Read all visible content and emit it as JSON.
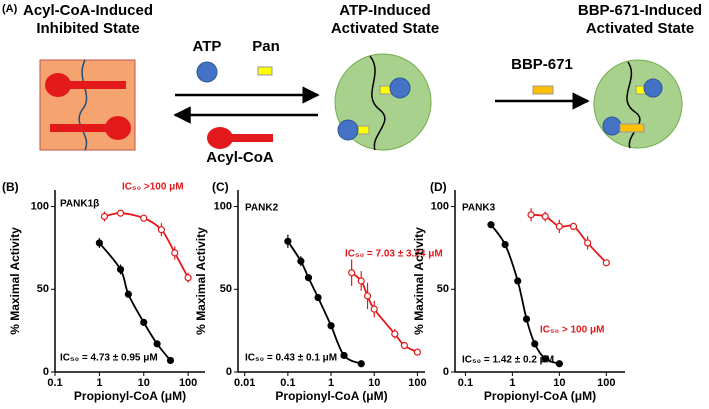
{
  "diagram": {
    "panel_label": "(A)",
    "inhibited_state": [
      "Acyl-CoA-Induced",
      "Inhibited State"
    ],
    "atp": "ATP",
    "pan": "Pan",
    "acyl_coa": "Acyl-CoA",
    "atp_state": [
      "ATP-Induced",
      "Activated State"
    ],
    "compound": "BBP-671",
    "bbp_state": [
      "BBP-671-Induced",
      "Activated State"
    ]
  },
  "chart_data": [
    {
      "type": "scatter",
      "panel_label": "(B)",
      "xlabel": "Propionyl-CoA (μM)",
      "ylabel": "% Maximal Activity",
      "log_x": true,
      "xlim": [
        0.1,
        240
      ],
      "ylim": [
        0,
        110
      ],
      "xticks": [
        0.1,
        1,
        10,
        100
      ],
      "yticks": [
        0,
        50,
        100
      ],
      "annotations": [
        {
          "text": "PANK1β",
          "color": "#000000"
        },
        {
          "text": "IC₅₀ >100 μM",
          "color": "#e3191c"
        },
        {
          "text": "IC₅₀ = 4.73 ± 0.95 μM",
          "color": "#000000"
        }
      ],
      "series": [
        {
          "color": "#000000",
          "marker": "filled",
          "x": [
            1,
            3,
            4.5,
            10,
            20,
            40
          ],
          "values": [
            78,
            62,
            47,
            30,
            17,
            7
          ],
          "errors": [
            3,
            3,
            2,
            2,
            1,
            1
          ]
        },
        {
          "color": "#e3191c",
          "marker": "open",
          "x": [
            1.3,
            3,
            10,
            25,
            50,
            100
          ],
          "values": [
            94,
            96,
            93,
            86,
            72,
            57
          ],
          "errors": [
            3,
            2,
            2,
            4,
            4,
            3
          ]
        }
      ]
    },
    {
      "type": "scatter",
      "panel_label": "(C)",
      "xlabel": "Propionyl-CoA (μM)",
      "ylabel": "% Maximal Activity",
      "log_x": true,
      "xlim": [
        0.007,
        150
      ],
      "ylim": [
        0,
        110
      ],
      "xticks": [
        0.01,
        0.1,
        1,
        10,
        100
      ],
      "yticks": [
        0,
        50,
        100
      ],
      "annotations": [
        {
          "text": "PANK2",
          "color": "#000000"
        },
        {
          "text": "IC₅₀ = 7.03 ± 3.24 μM",
          "color": "#e3191c"
        },
        {
          "text": "IC₅₀ = 0.43 ± 0.1 μM",
          "color": "#000000"
        }
      ],
      "series": [
        {
          "color": "#000000",
          "marker": "filled",
          "x": [
            0.1,
            0.2,
            0.3,
            0.5,
            1,
            2,
            5
          ],
          "values": [
            79,
            67,
            57,
            45,
            28,
            10,
            5
          ],
          "errors": [
            4,
            3,
            2,
            2,
            2,
            1,
            1
          ]
        },
        {
          "color": "#e3191c",
          "marker": "open",
          "x": [
            3,
            5,
            7,
            10,
            30,
            50,
            100
          ],
          "values": [
            60,
            55,
            46,
            38,
            23,
            16,
            12
          ],
          "errors": [
            8,
            6,
            8,
            5,
            3,
            2,
            2
          ]
        }
      ]
    },
    {
      "type": "scatter",
      "panel_label": "(D)",
      "xlabel": "Propionyl-CoA (μM)",
      "ylabel": "% Maximal Activity",
      "log_x": true,
      "xlim": [
        0.06,
        250
      ],
      "ylim": [
        0,
        110
      ],
      "xticks": [
        0.1,
        1,
        10,
        100
      ],
      "yticks": [
        0,
        50,
        100
      ],
      "annotations": [
        {
          "text": "PANK3",
          "color": "#000000"
        },
        {
          "text": "IC₅₀ > 100 μM",
          "color": "#e3191c"
        },
        {
          "text": "IC₅₀ = 1.42 ± 0.2 μM",
          "color": "#000000"
        }
      ],
      "series": [
        {
          "color": "#000000",
          "marker": "filled",
          "x": [
            0.35,
            0.7,
            1.3,
            2,
            3,
            5,
            10
          ],
          "values": [
            89,
            77,
            55,
            32,
            17,
            8,
            5
          ],
          "errors": [
            2,
            2,
            1,
            1,
            1,
            1,
            1
          ]
        },
        {
          "color": "#e3191c",
          "marker": "open",
          "x": [
            2.5,
            5,
            10,
            20,
            40,
            100
          ],
          "values": [
            95,
            94,
            88,
            88,
            78,
            66
          ],
          "errors": [
            4,
            3,
            4,
            2,
            4,
            2
          ]
        }
      ]
    }
  ]
}
